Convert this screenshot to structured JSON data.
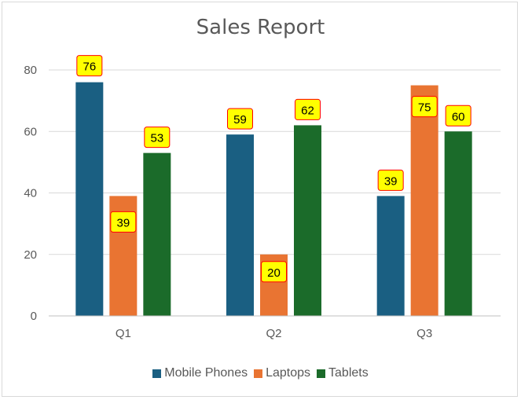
{
  "chart_data": {
    "type": "bar",
    "title": "Sales Report",
    "categories": [
      "Q1",
      "Q2",
      "Q3"
    ],
    "series": [
      {
        "name": "Mobile Phones",
        "values": [
          76,
          59,
          39
        ],
        "color": "#1a5f82"
      },
      {
        "name": "Laptops",
        "values": [
          39,
          20,
          75
        ],
        "color": "#e97432"
      },
      {
        "name": "Tablets",
        "values": [
          53,
          62,
          60
        ],
        "color": "#1b6b2a"
      }
    ],
    "xlabel": "",
    "ylabel": "",
    "ylim": [
      0,
      80
    ],
    "yticks": [
      0,
      20,
      40,
      60,
      80
    ],
    "grid": true,
    "legend_position": "bottom",
    "data_label_style": {
      "fill": "#ffff00",
      "border": "#ff0000"
    }
  }
}
